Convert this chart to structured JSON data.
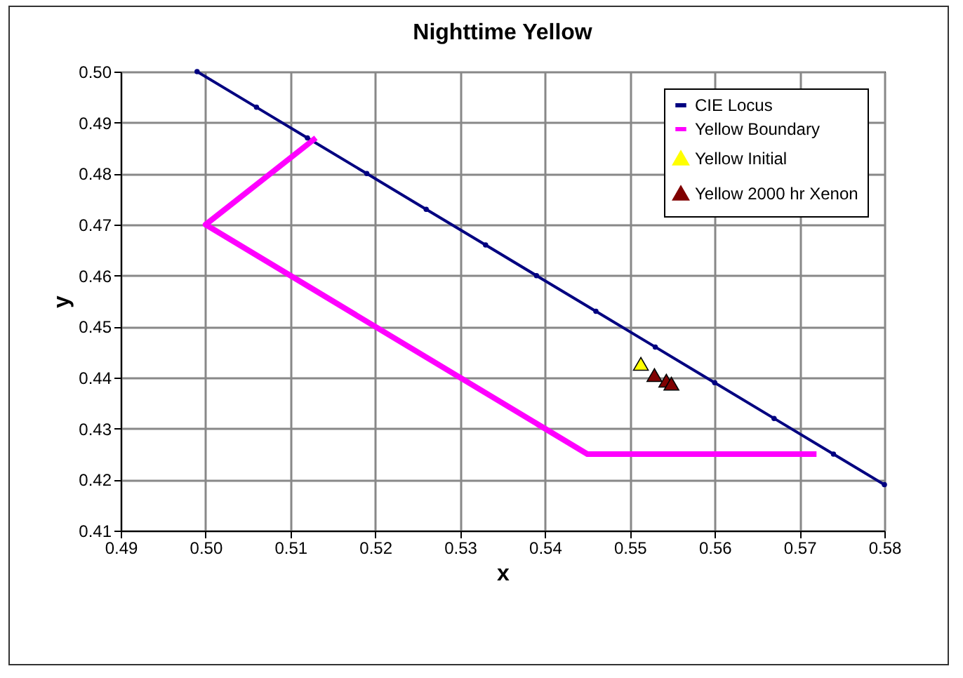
{
  "chart_data": {
    "type": "line",
    "title": "Nighttime Yellow",
    "xlabel": "x",
    "ylabel": "y",
    "xlim": [
      0.49,
      0.58
    ],
    "xticks": [
      {
        "value": 0.49,
        "label": "0.49"
      },
      {
        "value": 0.5,
        "label": "0.50"
      },
      {
        "value": 0.51,
        "label": "0.51"
      },
      {
        "value": 0.52,
        "label": "0.52"
      },
      {
        "value": 0.53,
        "label": "0.53"
      },
      {
        "value": 0.54,
        "label": "0.54"
      },
      {
        "value": 0.55,
        "label": "0.55"
      },
      {
        "value": 0.56,
        "label": "0.56"
      },
      {
        "value": 0.57,
        "label": "0.57"
      },
      {
        "value": 0.58,
        "label": "0.58"
      }
    ],
    "ylim": [
      0.41,
      0.5
    ],
    "yticks": [
      {
        "value": 0.41,
        "label": "0.41"
      },
      {
        "value": 0.42,
        "label": "0.42"
      },
      {
        "value": 0.43,
        "label": "0.43"
      },
      {
        "value": 0.44,
        "label": "0.44"
      },
      {
        "value": 0.45,
        "label": "0.45"
      },
      {
        "value": 0.46,
        "label": "0.46"
      },
      {
        "value": 0.47,
        "label": "0.47"
      },
      {
        "value": 0.48,
        "label": "0.48"
      },
      {
        "value": 0.49,
        "label": "0.49"
      },
      {
        "value": 0.5,
        "label": "0.50"
      }
    ],
    "grid": true,
    "legend": "top right",
    "series": [
      {
        "name": "CIE Locus",
        "marker": "circle",
        "color": "#000080",
        "x": [
          0.499,
          0.506,
          0.512,
          0.519,
          0.526,
          0.533,
          0.539,
          0.546,
          0.553,
          0.56,
          0.567,
          0.574,
          0.58
        ],
        "values": [
          0.5,
          0.493,
          0.487,
          0.48,
          0.473,
          0.466,
          0.46,
          0.453,
          0.446,
          0.439,
          0.432,
          0.425,
          0.419
        ]
      },
      {
        "name": "Yellow Boundary",
        "marker": "none",
        "color": "#ff00ff",
        "x": [
          0.513,
          0.5,
          0.545,
          0.572
        ],
        "values": [
          0.487,
          0.47,
          0.425,
          0.425
        ]
      },
      {
        "name": "Yellow Initial",
        "type": "scatter",
        "marker": "triangle",
        "color": "#ffff00",
        "x": [
          0.5513
        ],
        "values": [
          0.4427
        ]
      },
      {
        "name": "Yellow 2000 hr Xenon",
        "type": "scatter",
        "marker": "triangle",
        "color": "#800000",
        "x": [
          0.5529,
          0.5543,
          0.5549
        ],
        "values": [
          0.4405,
          0.4394,
          0.4388
        ]
      }
    ]
  }
}
